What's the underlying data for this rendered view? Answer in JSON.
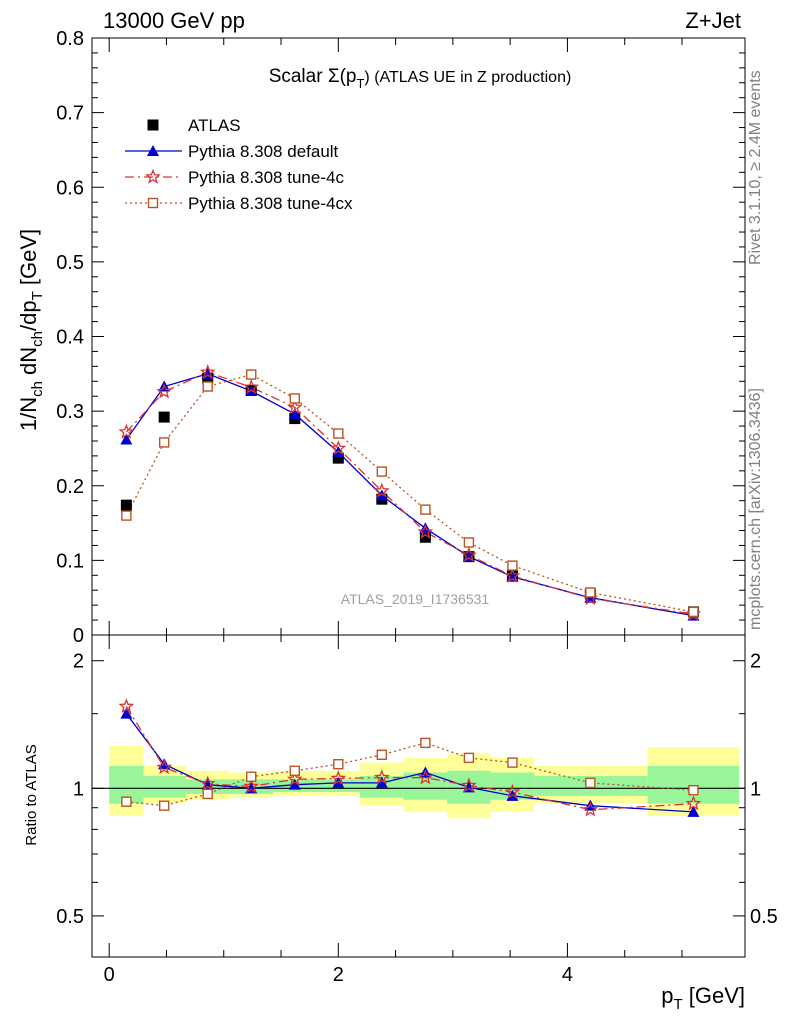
{
  "header": {
    "left": "13000 GeV pp",
    "right": "Z+Jet"
  },
  "side_text": {
    "rivet": "Rivet 3.1.10, ≥ 2.4M events",
    "mcplots": "mcplots.cern.ch [arXiv:1306.3436]"
  },
  "chart_data": [
    {
      "type": "scatter",
      "title": "Scalar Σ(pT) (ATLAS UE in Z production)",
      "title_main": "Scalar Σ(p",
      "title_sub": "T",
      "title_rest": ") (ATLAS UE in Z production)",
      "ylabel": "1/Nch dNch/dpT [GeV]",
      "xlabel": "pT [GeV]",
      "watermark": "ATLAS_2019_I1736531",
      "xlim": [
        -0.15,
        5.55
      ],
      "ylim": [
        0,
        0.8
      ],
      "yticks": [
        0,
        0.1,
        0.2,
        0.3,
        0.4,
        0.5,
        0.6,
        0.7,
        0.8
      ],
      "ytick_labels": [
        "0",
        "0.1",
        "0.2",
        "0.3",
        "0.4",
        "0.5",
        "0.6",
        "0.7",
        "0.8"
      ],
      "legend_position": "top-left",
      "x": [
        0.15,
        0.48,
        0.86,
        1.24,
        1.62,
        2.0,
        2.38,
        2.76,
        3.14,
        3.52,
        4.2,
        5.1
      ],
      "series": [
        {
          "name": "ATLAS",
          "color": "#000000",
          "marker": "square",
          "values": [
            0.174,
            0.292,
            0.344,
            0.328,
            0.29,
            0.237,
            0.182,
            0.131,
            0.105,
            0.08,
            0.055,
            0.031
          ]
        },
        {
          "name": "Pythia 8.308 default",
          "color": "#0000cc",
          "marker": "triangle",
          "line": "solid",
          "values": [
            0.262,
            0.333,
            0.35,
            0.327,
            0.296,
            0.245,
            0.187,
            0.143,
            0.105,
            0.078,
            0.05,
            0.026
          ]
        },
        {
          "name": "Pythia 8.308 tune-4c",
          "color": "#dd3333",
          "marker": "star",
          "line": "dashdot",
          "values": [
            0.272,
            0.326,
            0.352,
            0.332,
            0.305,
            0.25,
            0.193,
            0.138,
            0.107,
            0.079,
            0.049,
            0.028
          ]
        },
        {
          "name": "Pythia 8.308 tune-4cx",
          "color": "#bb5522",
          "marker": "open-square",
          "line": "dotted",
          "values": [
            0.16,
            0.258,
            0.333,
            0.349,
            0.317,
            0.27,
            0.219,
            0.168,
            0.124,
            0.093,
            0.057,
            0.031
          ]
        }
      ]
    },
    {
      "type": "scatter",
      "title": "",
      "ylabel": "Ratio to ATLAS",
      "xlabel": "pT [GeV]",
      "xlim": [
        -0.15,
        5.55
      ],
      "ylim": [
        0.4,
        2.3
      ],
      "log_y": true,
      "yticks": [
        0.5,
        1,
        2
      ],
      "ytick_labels": [
        "0.5",
        "1",
        "2"
      ],
      "xticks": [
        0,
        2,
        4
      ],
      "xtick_labels": [
        "0",
        "2",
        "4"
      ],
      "bands": {
        "x_edges": [
          0,
          0.3,
          0.67,
          1.05,
          1.43,
          1.81,
          2.19,
          2.57,
          2.95,
          3.33,
          3.71,
          4.7,
          5.5
        ],
        "yellow": [
          [
            0.86,
            1.26
          ],
          [
            0.92,
            1.13
          ],
          [
            0.94,
            1.1
          ],
          [
            0.95,
            1.09
          ],
          [
            0.96,
            1.1
          ],
          [
            0.96,
            1.1
          ],
          [
            0.91,
            1.15
          ],
          [
            0.88,
            1.18
          ],
          [
            0.85,
            1.21
          ],
          [
            0.88,
            1.18
          ],
          [
            0.92,
            1.13
          ],
          [
            0.86,
            1.25
          ]
        ],
        "green": [
          [
            0.92,
            1.13
          ],
          [
            0.95,
            1.07
          ],
          [
            0.97,
            1.05
          ],
          [
            0.97,
            1.05
          ],
          [
            0.98,
            1.05
          ],
          [
            0.98,
            1.05
          ],
          [
            0.95,
            1.07
          ],
          [
            0.94,
            1.09
          ],
          [
            0.92,
            1.1
          ],
          [
            0.94,
            1.09
          ],
          [
            0.96,
            1.07
          ],
          [
            0.92,
            1.13
          ]
        ]
      },
      "series": [
        {
          "name": "Pythia 8.308 default",
          "color": "#0000cc",
          "marker": "triangle",
          "line": "solid",
          "values": [
            1.5,
            1.14,
            1.02,
            1.0,
            1.02,
            1.03,
            1.03,
            1.09,
            1.005,
            0.96,
            0.91,
            0.88
          ]
        },
        {
          "name": "Pythia 8.308 tune-4c",
          "color": "#dd3333",
          "marker": "star",
          "line": "dashdot",
          "values": [
            1.56,
            1.12,
            1.025,
            1.01,
            1.05,
            1.055,
            1.06,
            1.06,
            1.015,
            0.98,
            0.89,
            0.92
          ]
        },
        {
          "name": "Pythia 8.308 tune-4cx",
          "color": "#bb5522",
          "marker": "open-square",
          "line": "dotted",
          "values": [
            0.93,
            0.91,
            0.97,
            1.065,
            1.1,
            1.14,
            1.2,
            1.28,
            1.18,
            1.15,
            1.03,
            0.99
          ]
        }
      ]
    }
  ]
}
